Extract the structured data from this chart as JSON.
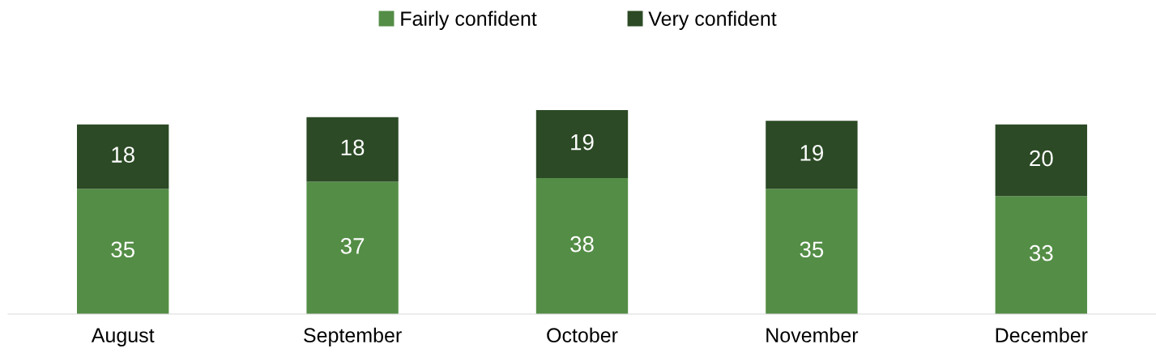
{
  "chart_data": {
    "type": "bar",
    "stacked": true,
    "categories": [
      "August",
      "September",
      "October",
      "November",
      "December"
    ],
    "series": [
      {
        "name": "Fairly confident",
        "color": "#548d46",
        "values": [
          35,
          37,
          38,
          35,
          33
        ]
      },
      {
        "name": "Very confident",
        "color": "#2b4a25",
        "values": [
          18,
          18,
          19,
          19,
          20
        ]
      }
    ],
    "data_labels": true,
    "legend": "top",
    "grid": false,
    "tick_labels": "x"
  }
}
